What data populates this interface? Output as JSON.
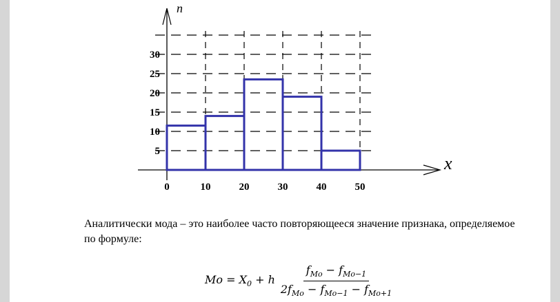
{
  "chart_data": {
    "type": "bar",
    "histogram": true,
    "bin_edges": [
      0,
      10,
      20,
      30,
      40,
      50
    ],
    "values": [
      11.5,
      14,
      23.5,
      19,
      5
    ],
    "x_ticks": [
      "0",
      "10",
      "20",
      "30",
      "40",
      "50"
    ],
    "y_ticks": [
      "5",
      "10",
      "15",
      "20",
      "25",
      "30"
    ],
    "xlabel": "x",
    "ylabel": "n",
    "xlim": [
      0,
      70
    ],
    "ylim": [
      0,
      40
    ],
    "grid": true,
    "grid_style": "dashed",
    "bar_color": "#3333aa",
    "axis_color": "#000000",
    "grid_color": "#000000"
  },
  "text": {
    "paragraph": "Аналитически мода – это наиболее часто повторяющееся значение признака, определяемое по формуле:"
  },
  "formula": {
    "lhs": "Mo = X",
    "lhs_sub": "0",
    "plus": " + h",
    "num_a": "f",
    "num_a_sub": "Mo",
    "num_minus": " − f",
    "num_b_sub": "Mo−1",
    "den_a": "2f",
    "den_a_sub": "Mo",
    "den_minus1": " − f",
    "den_b_sub": "Mo−1",
    "den_minus2": " − f",
    "den_c_sub": "Mo+1"
  }
}
